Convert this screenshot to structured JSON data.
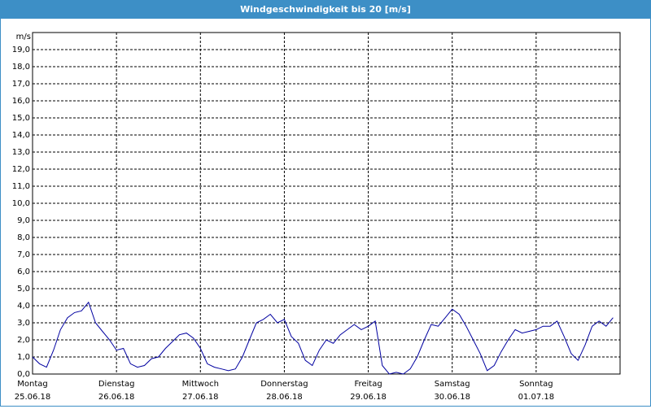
{
  "chart_data": {
    "type": "line",
    "title": "Windgeschwindigkeit bis 20 [m/s]",
    "y_label": "m/s",
    "x": [
      0,
      0.083,
      0.167,
      0.25,
      0.333,
      0.417,
      0.5,
      0.583,
      0.667,
      0.75,
      0.833,
      0.917,
      1,
      1.083,
      1.167,
      1.25,
      1.333,
      1.417,
      1.5,
      1.583,
      1.667,
      1.75,
      1.833,
      1.917,
      2,
      2.083,
      2.167,
      2.25,
      2.333,
      2.417,
      2.5,
      2.583,
      2.667,
      2.75,
      2.833,
      2.917,
      3,
      3.083,
      3.167,
      3.25,
      3.333,
      3.417,
      3.5,
      3.583,
      3.667,
      3.75,
      3.833,
      3.917,
      4,
      4.083,
      4.167,
      4.25,
      4.333,
      4.417,
      4.5,
      4.583,
      4.667,
      4.75,
      4.833,
      4.917,
      5,
      5.083,
      5.167,
      5.25,
      5.333,
      5.417,
      5.5,
      5.583,
      5.667,
      5.75,
      5.833,
      5.917,
      6,
      6.083,
      6.167,
      6.25,
      6.333,
      6.417,
      6.5,
      6.583,
      6.667,
      6.75,
      6.833,
      6.917
    ],
    "series": [
      {
        "color": "#0000a0",
        "values": [
          1.0,
          0.6,
          0.4,
          1.4,
          2.6,
          3.3,
          3.6,
          3.7,
          4.2,
          3.0,
          2.5,
          2.0,
          1.4,
          1.5,
          0.6,
          0.4,
          0.5,
          0.9,
          1.0,
          1.5,
          1.9,
          2.3,
          2.4,
          2.1,
          1.5,
          0.6,
          0.4,
          0.3,
          0.2,
          0.3,
          1.0,
          2.0,
          3.0,
          3.2,
          3.5,
          3.0,
          3.2,
          2.2,
          1.8,
          0.8,
          0.5,
          1.4,
          2.0,
          1.8,
          2.3,
          2.6,
          2.9,
          2.6,
          2.8,
          3.1,
          0.5,
          0.0,
          0.1,
          0.0,
          0.3,
          1.0,
          2.0,
          2.9,
          2.8,
          3.3,
          3.8,
          3.5,
          2.8,
          2.0,
          1.2,
          0.2,
          0.5,
          1.3,
          2.0,
          2.6,
          2.4,
          2.5,
          2.6,
          2.8,
          2.8,
          3.1,
          2.2,
          1.2,
          0.8,
          1.7,
          2.8,
          3.1,
          2.8,
          3.3
        ]
      }
    ],
    "xlim": [
      0,
      7
    ],
    "xticks": [
      {
        "value": 0,
        "label": "Montag",
        "date": "25.06.18"
      },
      {
        "value": 1,
        "label": "Dienstag",
        "date": "26.06.18"
      },
      {
        "value": 2,
        "label": "Mittwoch",
        "date": "27.06.18"
      },
      {
        "value": 3,
        "label": "Donnerstag",
        "date": "28.06.18"
      },
      {
        "value": 4,
        "label": "Freitag",
        "date": "29.06.18"
      },
      {
        "value": 5,
        "label": "Samstag",
        "date": "30.06.18"
      },
      {
        "value": 6,
        "label": "Sonntag",
        "date": "01.07.18"
      }
    ],
    "ylim": [
      0,
      20
    ],
    "yticks": [
      {
        "value": 0,
        "label": "0,0"
      },
      {
        "value": 1,
        "label": "1,0"
      },
      {
        "value": 2,
        "label": "2,0"
      },
      {
        "value": 3,
        "label": "3,0"
      },
      {
        "value": 4,
        "label": "4,0"
      },
      {
        "value": 5,
        "label": "5,0"
      },
      {
        "value": 6,
        "label": "6,0"
      },
      {
        "value": 7,
        "label": "7,0"
      },
      {
        "value": 8,
        "label": "8,0"
      },
      {
        "value": 9,
        "label": "9,0"
      },
      {
        "value": 10,
        "label": "10,0"
      },
      {
        "value": 11,
        "label": "11,0"
      },
      {
        "value": 12,
        "label": "12,0"
      },
      {
        "value": 13,
        "label": "13,0"
      },
      {
        "value": 14,
        "label": "14,0"
      },
      {
        "value": 15,
        "label": "15,0"
      },
      {
        "value": 16,
        "label": "16,0"
      },
      {
        "value": 17,
        "label": "17,0"
      },
      {
        "value": 18,
        "label": "18,0"
      },
      {
        "value": 19,
        "label": "19,0"
      }
    ],
    "grid": true
  }
}
